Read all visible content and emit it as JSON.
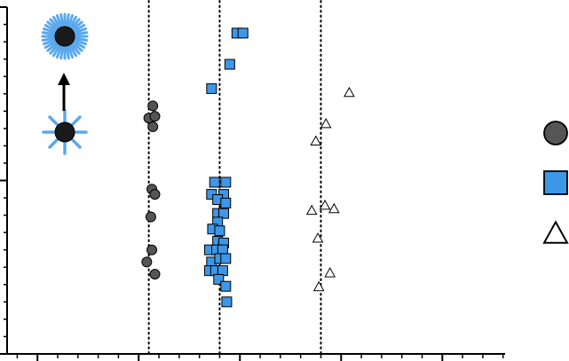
{
  "chart_data": {
    "type": "scatter",
    "xlim": [
      -1.3,
      3.62
    ],
    "ylim": [
      0,
      10
    ],
    "x_major_ticks": [
      -1,
      0,
      1,
      2,
      3
    ],
    "grid": false,
    "legend_position": "right",
    "reference_lines_x": [
      0.1,
      0.8,
      1.8
    ],
    "colors": {
      "circle": "#555555",
      "square": "#3d97e8",
      "triangle": "#ffffff",
      "outline": "#000000",
      "spike": "#5aa8ee"
    },
    "icons": [
      "nanoparticle-with-dense-corona-icon",
      "upward-arrow-icon",
      "nanoparticle-with-sparse-ligands-icon"
    ],
    "series": [
      {
        "marker": "circle",
        "points": [
          [
            0.14,
            7.15
          ],
          [
            0.1,
            6.8
          ],
          [
            0.14,
            6.55
          ],
          [
            0.16,
            6.85
          ],
          [
            0.13,
            4.75
          ],
          [
            0.16,
            4.6
          ],
          [
            0.12,
            3.95
          ],
          [
            0.13,
            3.0
          ],
          [
            0.08,
            2.65
          ],
          [
            0.16,
            2.3
          ]
        ]
      },
      {
        "marker": "square",
        "points": [
          [
            0.97,
            9.25
          ],
          [
            1.03,
            9.25
          ],
          [
            0.9,
            8.35
          ],
          [
            0.72,
            7.65
          ],
          [
            0.75,
            4.95
          ],
          [
            0.86,
            4.95
          ],
          [
            0.72,
            4.6
          ],
          [
            0.84,
            4.6
          ],
          [
            0.78,
            4.45
          ],
          [
            0.86,
            4.35
          ],
          [
            0.78,
            4.05
          ],
          [
            0.84,
            4.05
          ],
          [
            0.78,
            3.8
          ],
          [
            0.73,
            3.6
          ],
          [
            0.8,
            3.55
          ],
          [
            0.78,
            3.25
          ],
          [
            0.84,
            3.2
          ],
          [
            0.7,
            3.0
          ],
          [
            0.77,
            3.0
          ],
          [
            0.83,
            3.0
          ],
          [
            0.72,
            2.65
          ],
          [
            0.8,
            2.75
          ],
          [
            0.86,
            2.75
          ],
          [
            0.7,
            2.4
          ],
          [
            0.76,
            2.4
          ],
          [
            0.83,
            2.4
          ],
          [
            0.79,
            2.15
          ],
          [
            0.86,
            1.95
          ],
          [
            0.87,
            1.5
          ]
        ]
      },
      {
        "marker": "triangle",
        "points": [
          [
            2.08,
            7.55
          ],
          [
            1.85,
            6.65
          ],
          [
            1.75,
            6.15
          ],
          [
            1.71,
            4.15
          ],
          [
            1.84,
            4.3
          ],
          [
            1.93,
            4.2
          ],
          [
            1.77,
            3.35
          ],
          [
            1.89,
            2.35
          ],
          [
            1.78,
            1.95
          ]
        ]
      }
    ],
    "legend": [
      {
        "marker": "circle"
      },
      {
        "marker": "square"
      },
      {
        "marker": "triangle"
      }
    ]
  }
}
